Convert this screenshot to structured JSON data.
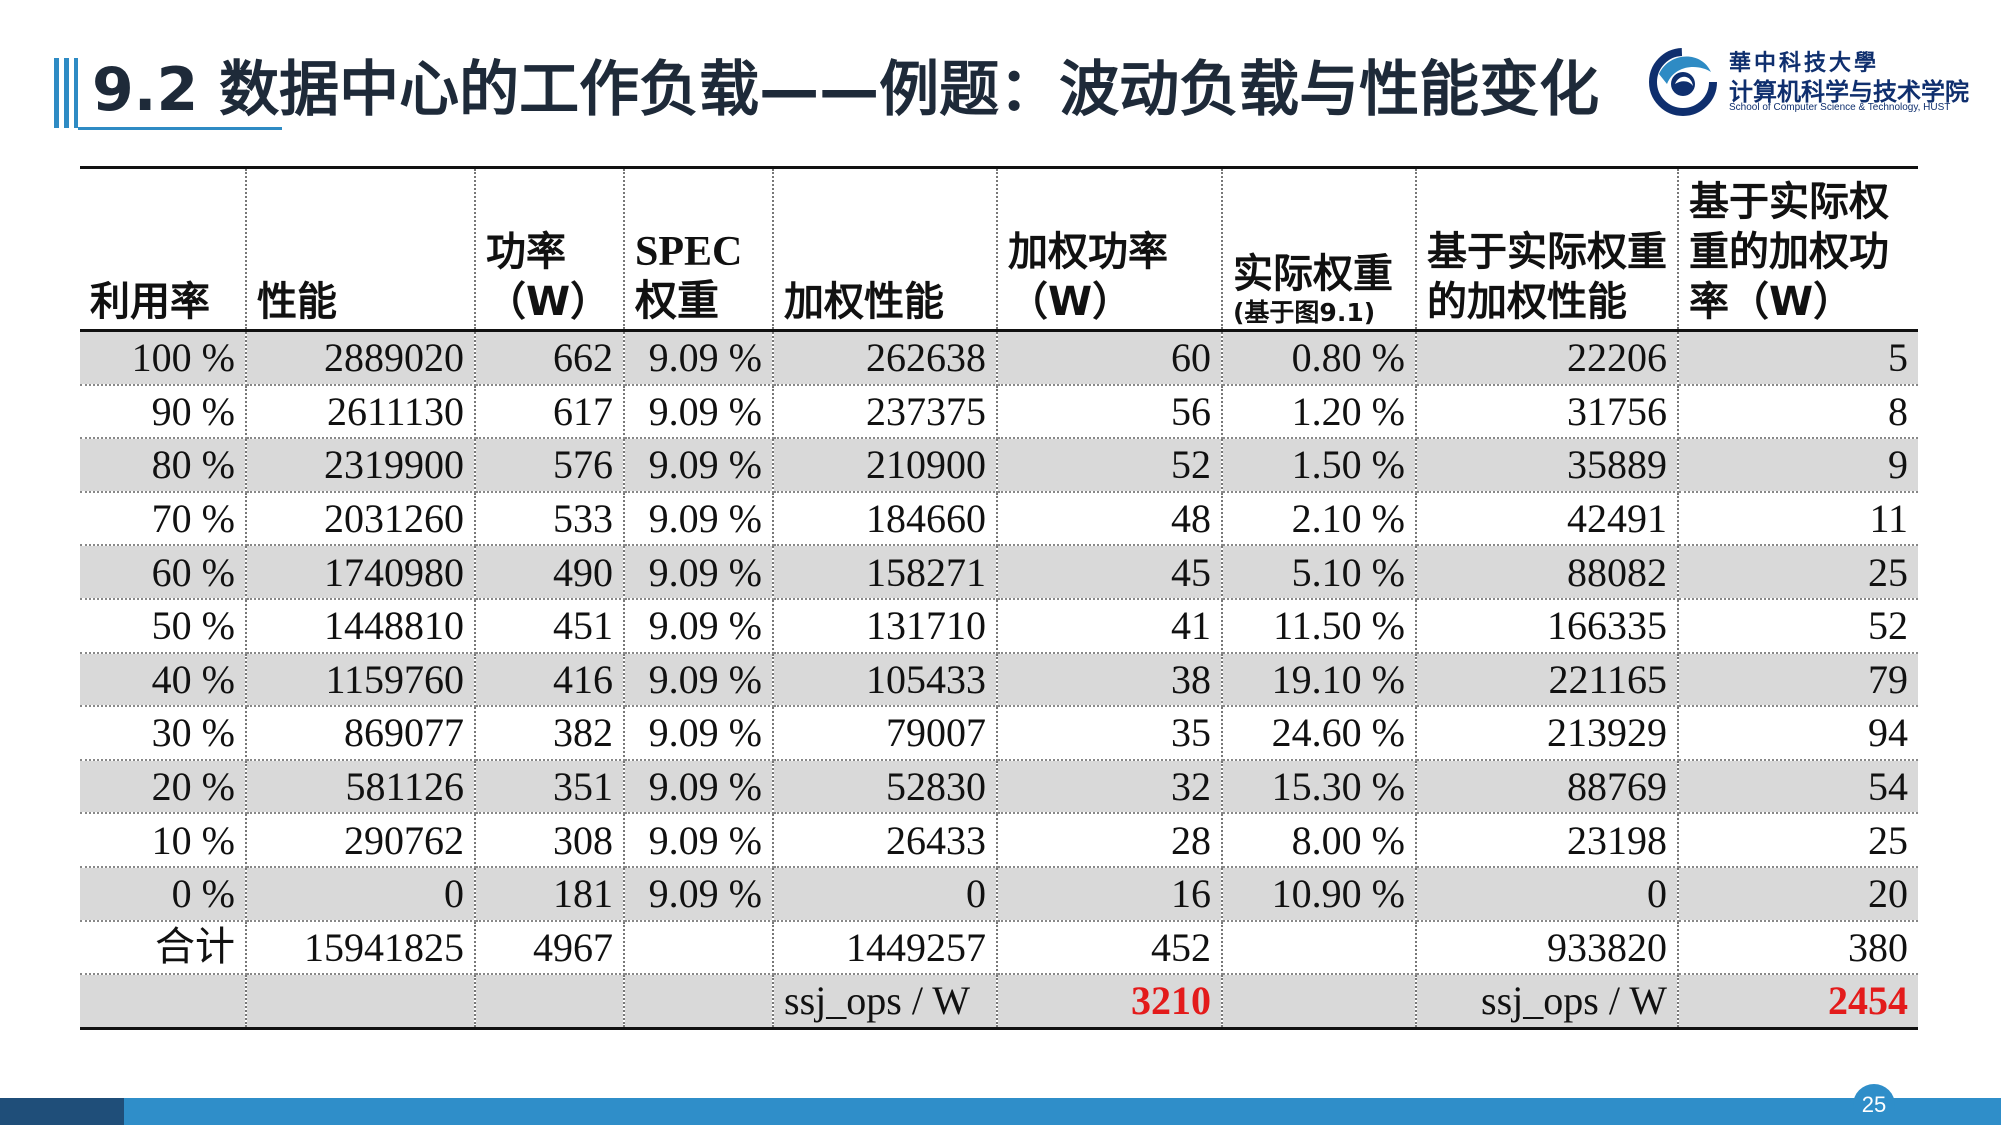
{
  "slide": {
    "title": "9.2  数据中心的工作负载——例题：波动负载与性能变化",
    "page_number": "25"
  },
  "logo": {
    "university_cn": "華中科技大學",
    "school_cn": "计算机科学与技术学院",
    "school_en": "School of Computer Science & Technology, HUST"
  },
  "table": {
    "headers": [
      {
        "label": "利用率"
      },
      {
        "label": "性能"
      },
      {
        "label": "功率（W）"
      },
      {
        "label": "SPEC权重"
      },
      {
        "label": "加权性能"
      },
      {
        "label": "加权功率（W）"
      },
      {
        "label": "实际权重",
        "sub": "(基于图9.1)"
      },
      {
        "label": "基于实际权重的加权性能"
      },
      {
        "label": "基于实际权重的加权功率（W）"
      }
    ],
    "rows": [
      [
        "100 %",
        "2889020",
        "662",
        "9.09 %",
        "262638",
        "60",
        "0.80 %",
        "22206",
        "5"
      ],
      [
        "90 %",
        "2611130",
        "617",
        "9.09 %",
        "237375",
        "56",
        "1.20 %",
        "31756",
        "8"
      ],
      [
        "80 %",
        "2319900",
        "576",
        "9.09 %",
        "210900",
        "52",
        "1.50 %",
        "35889",
        "9"
      ],
      [
        "70 %",
        "2031260",
        "533",
        "9.09 %",
        "184660",
        "48",
        "2.10 %",
        "42491",
        "11"
      ],
      [
        "60 %",
        "1740980",
        "490",
        "9.09 %",
        "158271",
        "45",
        "5.10 %",
        "88082",
        "25"
      ],
      [
        "50 %",
        "1448810",
        "451",
        "9.09 %",
        "131710",
        "41",
        "11.50 %",
        "166335",
        "52"
      ],
      [
        "40 %",
        "1159760",
        "416",
        "9.09 %",
        "105433",
        "38",
        "19.10 %",
        "221165",
        "79"
      ],
      [
        "30 %",
        "869077",
        "382",
        "9.09 %",
        "79007",
        "35",
        "24.60 %",
        "213929",
        "94"
      ],
      [
        "20 %",
        "581126",
        "351",
        "9.09 %",
        "52830",
        "32",
        "15.30 %",
        "88769",
        "54"
      ],
      [
        "10 %",
        "290762",
        "308",
        "9.09 %",
        "26433",
        "28",
        "8.00 %",
        "23198",
        "25"
      ],
      [
        "0 %",
        "0",
        "181",
        "9.09 %",
        "0",
        "16",
        "10.90 %",
        "0",
        "20"
      ]
    ],
    "total_row": [
      "合计",
      "15941825",
      "4967",
      "",
      "1449257",
      "452",
      "",
      "933820",
      "380"
    ],
    "ratio_row": {
      "label_1": "ssj_ops / W",
      "value_1": "3210",
      "label_2": "ssj_ops / W",
      "value_2": "2454"
    },
    "colors": {
      "shade": "#d9d9d9",
      "highlight": "#e31b1b",
      "accent": "#2f8ec9"
    }
  }
}
